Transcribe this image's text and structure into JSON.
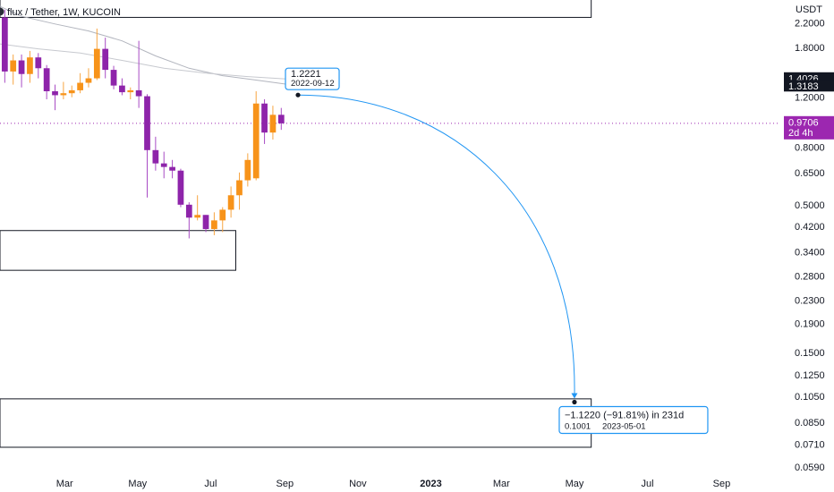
{
  "chart_data": {
    "type": "candlestick",
    "title": "flux / Tether, 1W, KUCOIN",
    "y_axis": {
      "currency": "USDT",
      "scale": "log",
      "ticks": [
        "2.2000",
        "1.8000",
        "1.2000",
        "0.8000",
        "0.6500",
        "0.5000",
        "0.4200",
        "0.3400",
        "0.2800",
        "0.2300",
        "0.1900",
        "0.1500",
        "0.1250",
        "0.1050",
        "0.0850",
        "0.0710",
        "0.0590"
      ],
      "range": [
        0.0565,
        2.65
      ]
    },
    "x_axis": {
      "ticks": [
        {
          "label": "Mar",
          "date": "2022-03-01"
        },
        {
          "label": "May",
          "date": "2022-05-01"
        },
        {
          "label": "Jul",
          "date": "2022-07-01"
        },
        {
          "label": "Sep",
          "date": "2022-09-01"
        },
        {
          "label": "Nov",
          "date": "2022-11-01"
        },
        {
          "label": "2023",
          "date": "2023-01-01",
          "bold": true
        },
        {
          "label": "Mar",
          "date": "2023-03-01"
        },
        {
          "label": "May",
          "date": "2023-05-01"
        },
        {
          "label": "Jul",
          "date": "2023-07-01"
        },
        {
          "label": "Sep",
          "date": "2023-09-01"
        }
      ],
      "range": [
        "2022-01-06",
        "2023-10-20"
      ]
    },
    "candles": [
      {
        "date": "2022-01-10",
        "open": 2.3,
        "high": 2.45,
        "low": 1.35,
        "close": 1.48
      },
      {
        "date": "2022-01-17",
        "open": 1.48,
        "high": 1.7,
        "low": 1.33,
        "close": 1.62
      },
      {
        "date": "2022-01-24",
        "open": 1.62,
        "high": 1.7,
        "low": 1.3,
        "close": 1.45
      },
      {
        "date": "2022-01-31",
        "open": 1.45,
        "high": 1.75,
        "low": 1.35,
        "close": 1.66
      },
      {
        "date": "2022-02-07",
        "open": 1.66,
        "high": 1.72,
        "low": 1.4,
        "close": 1.52
      },
      {
        "date": "2022-02-14",
        "open": 1.52,
        "high": 1.56,
        "low": 1.18,
        "close": 1.26
      },
      {
        "date": "2022-02-21",
        "open": 1.26,
        "high": 1.33,
        "low": 1.08,
        "close": 1.22
      },
      {
        "date": "2022-02-28",
        "open": 1.22,
        "high": 1.36,
        "low": 1.18,
        "close": 1.24
      },
      {
        "date": "2022-03-07",
        "open": 1.24,
        "high": 1.32,
        "low": 1.2,
        "close": 1.27
      },
      {
        "date": "2022-03-14",
        "open": 1.27,
        "high": 1.46,
        "low": 1.24,
        "close": 1.35
      },
      {
        "date": "2022-03-21",
        "open": 1.35,
        "high": 1.52,
        "low": 1.3,
        "close": 1.4
      },
      {
        "date": "2022-03-28",
        "open": 1.4,
        "high": 2.1,
        "low": 1.38,
        "close": 1.78
      },
      {
        "date": "2022-04-04",
        "open": 1.78,
        "high": 1.95,
        "low": 1.4,
        "close": 1.5
      },
      {
        "date": "2022-04-11",
        "open": 1.5,
        "high": 1.55,
        "low": 1.28,
        "close": 1.32
      },
      {
        "date": "2022-04-18",
        "open": 1.32,
        "high": 1.4,
        "low": 1.22,
        "close": 1.25
      },
      {
        "date": "2022-04-25",
        "open": 1.25,
        "high": 1.3,
        "low": 1.18,
        "close": 1.27
      },
      {
        "date": "2022-05-02",
        "open": 1.27,
        "high": 1.9,
        "low": 1.1,
        "close": 1.21
      },
      {
        "date": "2022-05-09",
        "open": 1.21,
        "high": 1.23,
        "low": 0.53,
        "close": 0.78
      },
      {
        "date": "2022-05-16",
        "open": 0.78,
        "high": 0.87,
        "low": 0.66,
        "close": 0.7
      },
      {
        "date": "2022-05-23",
        "open": 0.7,
        "high": 0.77,
        "low": 0.62,
        "close": 0.68
      },
      {
        "date": "2022-05-30",
        "open": 0.68,
        "high": 0.72,
        "low": 0.62,
        "close": 0.66
      },
      {
        "date": "2022-06-06",
        "open": 0.66,
        "high": 0.67,
        "low": 0.49,
        "close": 0.5
      },
      {
        "date": "2022-06-13",
        "open": 0.5,
        "high": 0.51,
        "low": 0.38,
        "close": 0.45
      },
      {
        "date": "2022-06-20",
        "open": 0.45,
        "high": 0.54,
        "low": 0.44,
        "close": 0.46
      },
      {
        "date": "2022-06-27",
        "open": 0.46,
        "high": 0.46,
        "low": 0.4,
        "close": 0.41
      },
      {
        "date": "2022-07-04",
        "open": 0.41,
        "high": 0.47,
        "low": 0.39,
        "close": 0.44
      },
      {
        "date": "2022-07-11",
        "open": 0.44,
        "high": 0.49,
        "low": 0.4,
        "close": 0.48
      },
      {
        "date": "2022-07-18",
        "open": 0.48,
        "high": 0.58,
        "low": 0.45,
        "close": 0.54
      },
      {
        "date": "2022-07-25",
        "open": 0.54,
        "high": 0.65,
        "low": 0.48,
        "close": 0.61
      },
      {
        "date": "2022-08-01",
        "open": 0.61,
        "high": 0.76,
        "low": 0.58,
        "close": 0.72
      },
      {
        "date": "2022-08-08",
        "open": 0.62,
        "high": 1.26,
        "low": 0.61,
        "close": 1.14
      },
      {
        "date": "2022-08-15",
        "open": 1.14,
        "high": 1.18,
        "low": 0.82,
        "close": 0.9
      },
      {
        "date": "2022-08-22",
        "open": 0.9,
        "high": 1.12,
        "low": 0.85,
        "close": 1.04
      },
      {
        "date": "2022-08-29",
        "open": 1.04,
        "high": 1.1,
        "low": 0.92,
        "close": 0.97
      }
    ],
    "moving_averages": [
      {
        "name": "",
        "color": "#b2b5be",
        "points": [
          {
            "date": "2022-01-03",
            "value": 2.55
          },
          {
            "date": "2022-01-24",
            "value": 2.32
          },
          {
            "date": "2022-02-21",
            "value": 2.18
          },
          {
            "date": "2022-03-21",
            "value": 2.06
          },
          {
            "date": "2022-04-18",
            "value": 1.9
          },
          {
            "date": "2022-05-16",
            "value": 1.68
          },
          {
            "date": "2022-06-13",
            "value": 1.52
          },
          {
            "date": "2022-07-11",
            "value": 1.43
          },
          {
            "date": "2022-08-08",
            "value": 1.38
          },
          {
            "date": "2022-09-05",
            "value": 1.33
          }
        ]
      },
      {
        "name": "",
        "color": "#c7c9cf",
        "points": [
          {
            "date": "2022-01-03",
            "value": 1.86
          },
          {
            "date": "2022-02-07",
            "value": 1.78
          },
          {
            "date": "2022-03-14",
            "value": 1.72
          },
          {
            "date": "2022-04-18",
            "value": 1.62
          },
          {
            "date": "2022-05-23",
            "value": 1.52
          },
          {
            "date": "2022-06-27",
            "value": 1.46
          },
          {
            "date": "2022-08-01",
            "value": 1.42
          },
          {
            "date": "2022-09-05",
            "value": 1.39
          }
        ]
      }
    ],
    "price_labels": [
      {
        "value": 1.4026,
        "text": "1.4026",
        "color": "#131722"
      },
      {
        "value": 1.3183,
        "text": "1.3183",
        "color": "#131722"
      },
      {
        "value": 0.9706,
        "text": "0.9706",
        "sub": "2d 4h",
        "color": "#9c27b0"
      }
    ],
    "current_price_line": {
      "value": 0.9706,
      "color": "#9c27b0"
    },
    "boxes": [
      {
        "x0": "2022-01-06",
        "x1": "2023-05-15",
        "y0": 2.95,
        "y1": 2.3
      },
      {
        "x0": "2022-01-06",
        "x1": "2022-07-22",
        "y0": 0.405,
        "y1": 0.293
      },
      {
        "x0": "2022-01-06",
        "x1": "2023-05-15",
        "y0": 0.1028,
        "y1": 0.0693
      }
    ],
    "projection": {
      "start": {
        "date": "2022-09-12",
        "value": 1.2221
      },
      "end": {
        "date": "2023-05-01",
        "value": 0.1001
      },
      "start_label": "1.2221",
      "start_date_label": "2022-09-12",
      "end_label": "−1.1220 (−91.81%) in 231d",
      "end_value_label": "0.1001",
      "end_date_label": "2023-05-01",
      "color": "#2196f3"
    },
    "colors": {
      "bull": "#f7931a",
      "bear": "#8e24aa",
      "wick_bull": "#f7a541",
      "wick_bear": "#a84bc4",
      "grid": "none",
      "text": "#131722"
    },
    "grid": false,
    "legend": "none"
  }
}
